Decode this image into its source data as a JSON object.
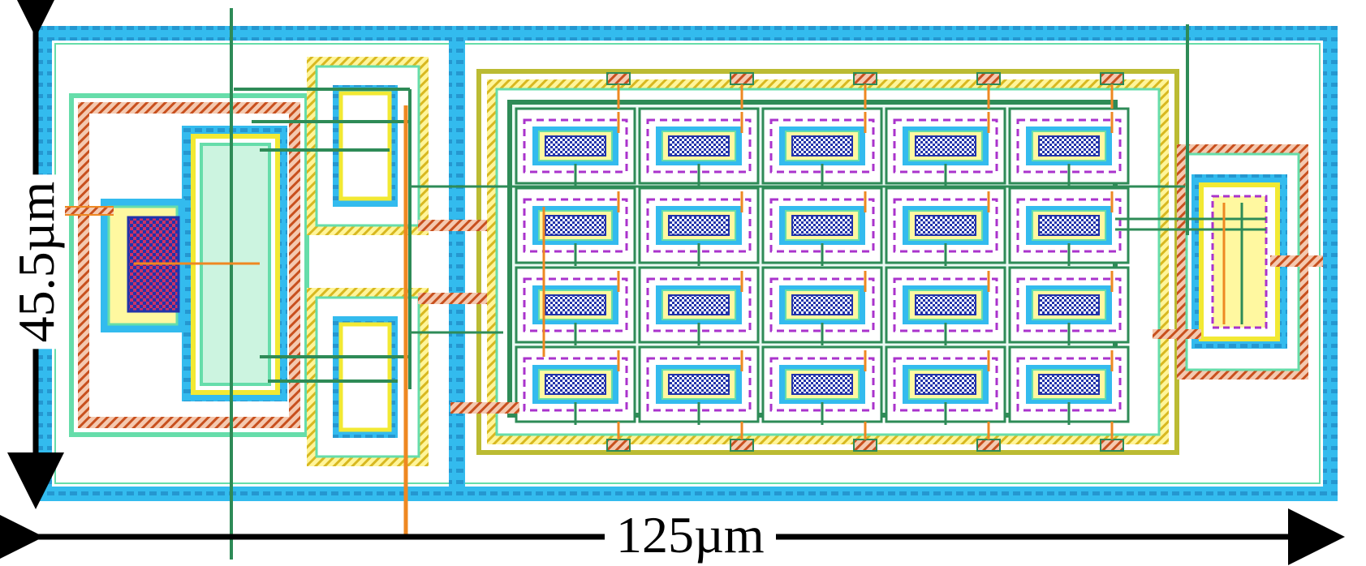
{
  "dimensions": {
    "width_label": "125µm",
    "height_label": "45.5µm"
  },
  "layout": {
    "cell_grid": {
      "rows": 4,
      "columns": 5
    },
    "colors": {
      "well_ring": "#33bbee",
      "ring_hatch": "#1a7ab8",
      "active_green": "#66ddaa",
      "poly_orange": "#ee8822",
      "metal_olive": "#bbbb33",
      "metal_magenta": "#aa33cc",
      "route_green": "#2e8b57",
      "implant_yellow": "#f2e933",
      "contact_blue": "#2233aa",
      "contact_pink": "#cc3366",
      "arrow_black": "#000000"
    }
  }
}
